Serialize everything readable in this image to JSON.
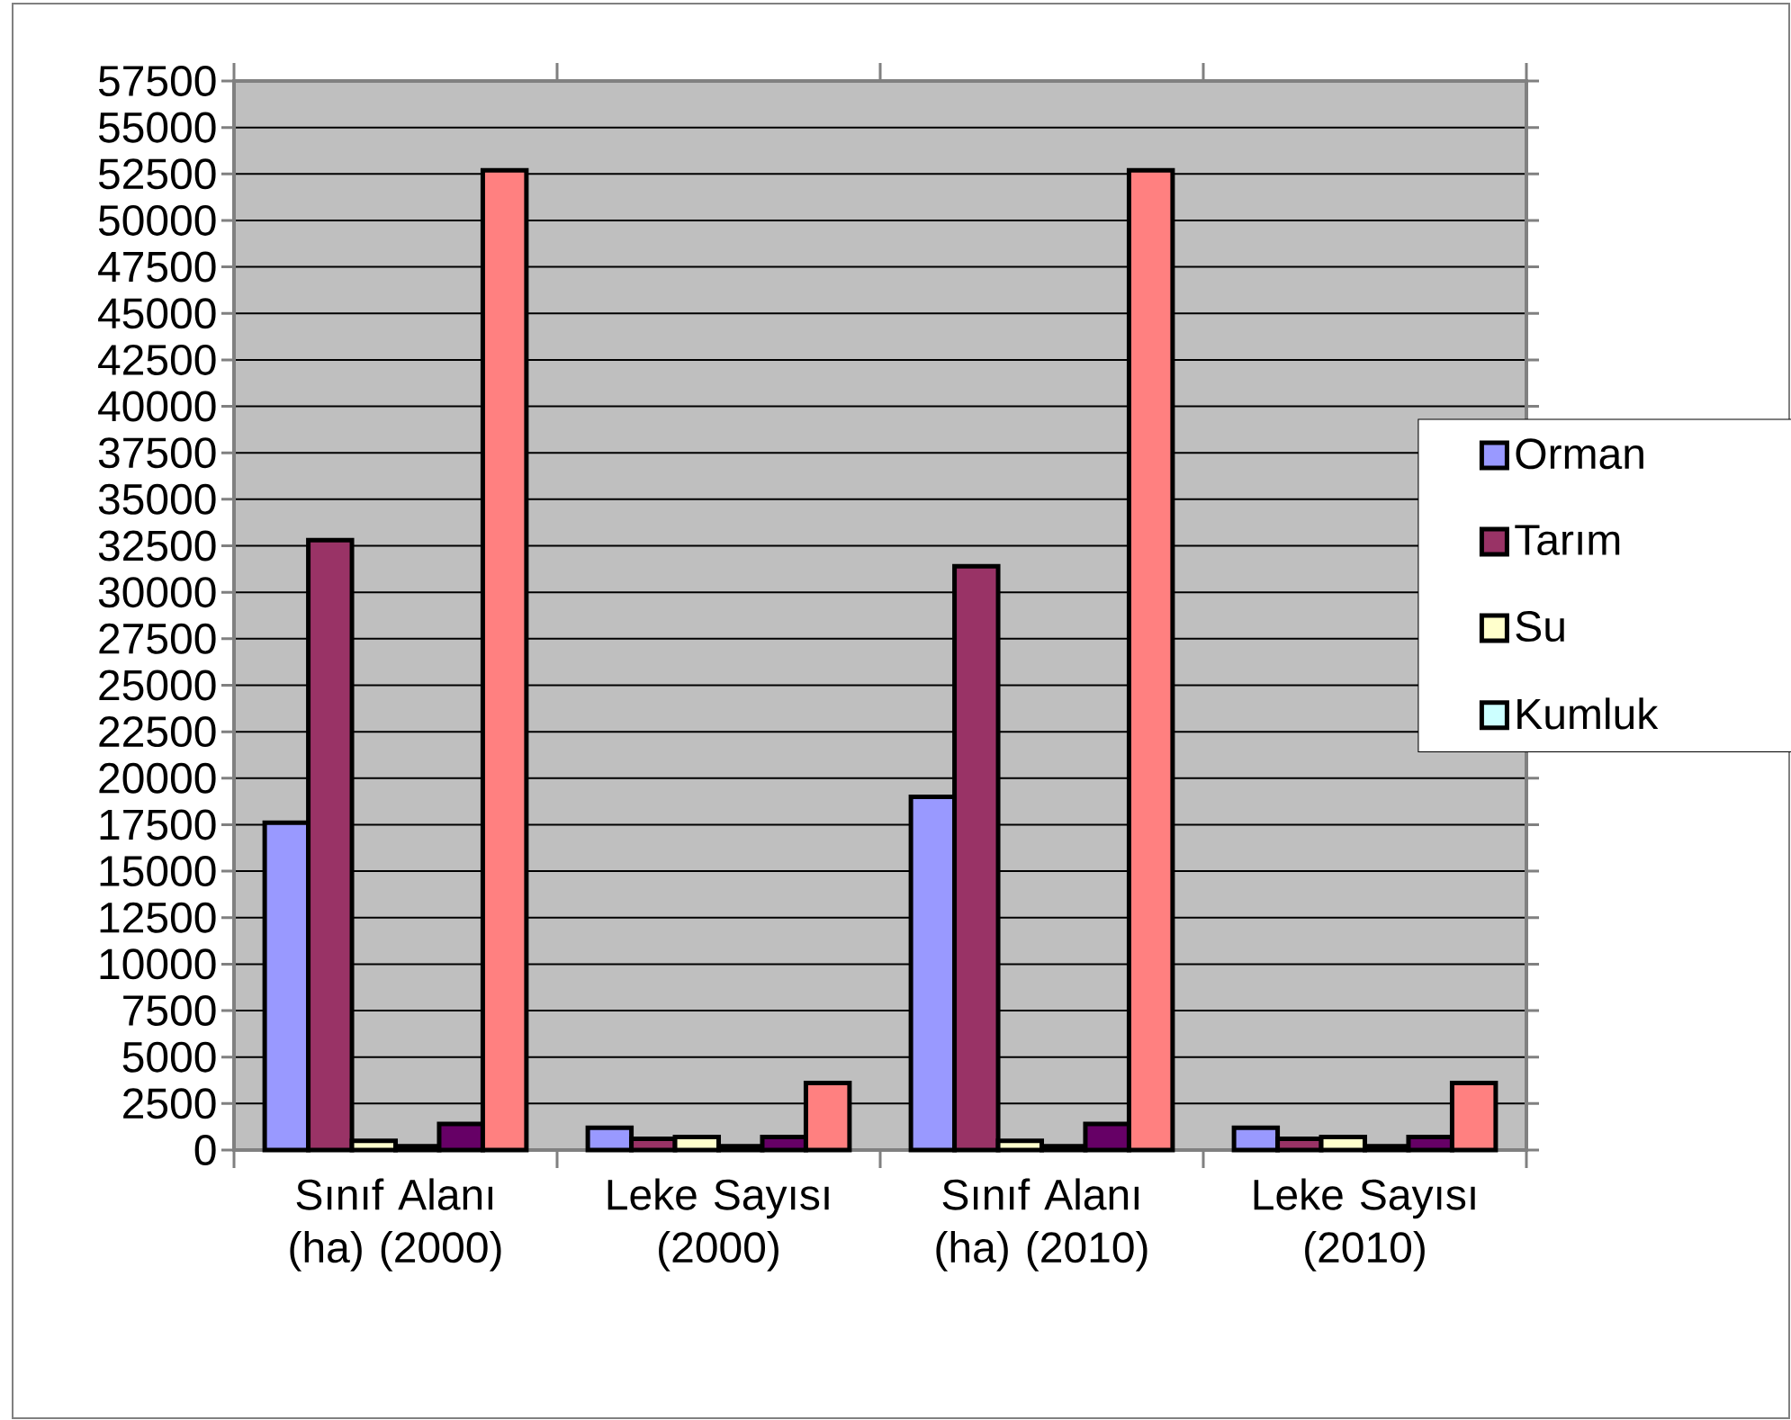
{
  "chart_data": {
    "type": "bar",
    "categories": [
      "Sınıf Alanı (ha) (2000)",
      "Leke Sayısı (2000)",
      "Sınıf Alanı (ha) (2010)",
      "Leke Sayısı (2010)"
    ],
    "series": [
      {
        "name": "Orman",
        "color": "#9999ff",
        "values": [
          17600,
          1200,
          19000,
          1200
        ]
      },
      {
        "name": "Tarım",
        "color": "#993366",
        "values": [
          32800,
          600,
          31400,
          600
        ]
      },
      {
        "name": "Su",
        "color": "#ffffcc",
        "values": [
          500,
          700,
          500,
          700
        ]
      },
      {
        "name": "Kumluk",
        "color": "#ccffff",
        "values": [
          200,
          200,
          200,
          200
        ]
      },
      {
        "color": "#660066",
        "values": [
          1400,
          700,
          1400,
          700
        ]
      },
      {
        "color": "#ff8080",
        "values": [
          52700,
          3600,
          52700,
          3600
        ]
      }
    ],
    "ylim": [
      0,
      57500
    ],
    "yticks": [
      0,
      2500,
      5000,
      7500,
      10000,
      12500,
      15000,
      17500,
      20000,
      22500,
      25000,
      27500,
      30000,
      32500,
      35000,
      37500,
      40000,
      42500,
      45000,
      47500,
      50000,
      52500,
      55000,
      57500
    ],
    "grid": "y",
    "legend": "right"
  }
}
